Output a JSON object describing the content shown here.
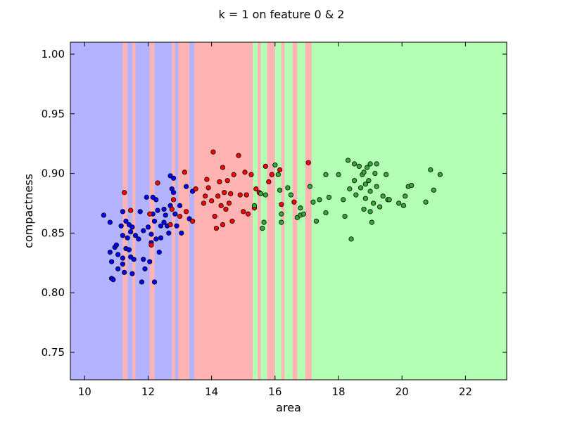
{
  "chart_data": {
    "type": "scatter",
    "title": "k = 1 on feature 0 & 2",
    "xlabel": "area",
    "ylabel": "compactness",
    "xlim": [
      9.55,
      23.3
    ],
    "ylim": [
      0.727,
      1.01
    ],
    "xticks": [
      10,
      12,
      14,
      16,
      18,
      20,
      22
    ],
    "yticks": [
      0.75,
      0.8,
      0.85,
      0.9,
      0.95,
      1.0
    ],
    "xtick_labels": [
      "10",
      "12",
      "14",
      "16",
      "18",
      "20",
      "22"
    ],
    "ytick_labels": [
      "0.75",
      "0.80",
      "0.85",
      "0.90",
      "0.95",
      "1.00"
    ],
    "grid": false,
    "region_colors": {
      "class_1": "#b3b3ff",
      "class_2": "#ffb3b3",
      "class_3": "#b3ffb3"
    },
    "point_colors": {
      "class_1": "#0000ff",
      "class_2": "#ff0000",
      "class_3": "#33aa33"
    },
    "decision_regions": [
      {
        "x0": 9.55,
        "x1": 11.2,
        "cls": "class_1"
      },
      {
        "x0": 11.2,
        "x1": 11.35,
        "cls": "class_2"
      },
      {
        "x0": 11.35,
        "x1": 11.5,
        "cls": "class_1"
      },
      {
        "x0": 11.5,
        "x1": 11.6,
        "cls": "class_2"
      },
      {
        "x0": 11.6,
        "x1": 12.05,
        "cls": "class_1"
      },
      {
        "x0": 12.05,
        "x1": 12.2,
        "cls": "class_2"
      },
      {
        "x0": 12.2,
        "x1": 12.75,
        "cls": "class_1"
      },
      {
        "x0": 12.75,
        "x1": 12.85,
        "cls": "class_2"
      },
      {
        "x0": 12.85,
        "x1": 12.95,
        "cls": "class_1"
      },
      {
        "x0": 12.95,
        "x1": 13.3,
        "cls": "class_2"
      },
      {
        "x0": 13.3,
        "x1": 13.45,
        "cls": "class_1"
      },
      {
        "x0": 13.45,
        "x1": 15.3,
        "cls": "class_2"
      },
      {
        "x0": 15.3,
        "x1": 15.45,
        "cls": "class_3"
      },
      {
        "x0": 15.45,
        "x1": 15.55,
        "cls": "class_2"
      },
      {
        "x0": 15.55,
        "x1": 15.75,
        "cls": "class_3"
      },
      {
        "x0": 15.75,
        "x1": 16.0,
        "cls": "class_2"
      },
      {
        "x0": 16.0,
        "x1": 16.2,
        "cls": "class_3"
      },
      {
        "x0": 16.2,
        "x1": 16.3,
        "cls": "class_2"
      },
      {
        "x0": 16.3,
        "x1": 16.55,
        "cls": "class_3"
      },
      {
        "x0": 16.55,
        "x1": 16.7,
        "cls": "class_2"
      },
      {
        "x0": 16.7,
        "x1": 16.95,
        "cls": "class_3"
      },
      {
        "x0": 16.95,
        "x1": 17.15,
        "cls": "class_2"
      },
      {
        "x0": 17.15,
        "x1": 23.3,
        "cls": "class_3"
      }
    ],
    "series": [
      {
        "name": "class_1",
        "points": [
          [
            10.6,
            0.865
          ],
          [
            10.8,
            0.859
          ],
          [
            10.8,
            0.834
          ],
          [
            10.85,
            0.826
          ],
          [
            10.85,
            0.812
          ],
          [
            10.9,
            0.811
          ],
          [
            10.95,
            0.838
          ],
          [
            11.0,
            0.84
          ],
          [
            11.05,
            0.832
          ],
          [
            11.05,
            0.82
          ],
          [
            11.15,
            0.856
          ],
          [
            11.2,
            0.868
          ],
          [
            11.2,
            0.848
          ],
          [
            11.2,
            0.829
          ],
          [
            11.2,
            0.824
          ],
          [
            11.25,
            0.817
          ],
          [
            11.3,
            0.86
          ],
          [
            11.3,
            0.837
          ],
          [
            11.35,
            0.846
          ],
          [
            11.4,
            0.857
          ],
          [
            11.4,
            0.836
          ],
          [
            11.45,
            0.851
          ],
          [
            11.45,
            0.83
          ],
          [
            11.5,
            0.855
          ],
          [
            11.5,
            0.816
          ],
          [
            11.55,
            0.828
          ],
          [
            11.6,
            0.848
          ],
          [
            11.7,
            0.845
          ],
          [
            11.75,
            0.868
          ],
          [
            11.8,
            0.809
          ],
          [
            11.85,
            0.852
          ],
          [
            11.85,
            0.828
          ],
          [
            11.9,
            0.82
          ],
          [
            11.95,
            0.88
          ],
          [
            12.0,
            0.855
          ],
          [
            12.05,
            0.826
          ],
          [
            12.1,
            0.849
          ],
          [
            12.1,
            0.842
          ],
          [
            12.15,
            0.88
          ],
          [
            12.15,
            0.866
          ],
          [
            12.2,
            0.809
          ],
          [
            12.2,
            0.86
          ],
          [
            12.25,
            0.878
          ],
          [
            12.25,
            0.845
          ],
          [
            12.3,
            0.869
          ],
          [
            12.35,
            0.834
          ],
          [
            12.4,
            0.856
          ],
          [
            12.4,
            0.846
          ],
          [
            12.5,
            0.87
          ],
          [
            12.5,
            0.859
          ],
          [
            12.55,
            0.865
          ],
          [
            12.6,
            0.856
          ],
          [
            12.65,
            0.85
          ],
          [
            12.7,
            0.898
          ],
          [
            12.7,
            0.873
          ],
          [
            12.75,
            0.887
          ],
          [
            12.8,
            0.896
          ],
          [
            12.8,
            0.884
          ],
          [
            12.85,
            0.866
          ],
          [
            12.9,
            0.856
          ],
          [
            13.0,
            0.873
          ],
          [
            13.05,
            0.85
          ],
          [
            13.2,
            0.889
          ],
          [
            13.3,
            0.862
          ],
          [
            13.4,
            0.885
          ]
        ]
      },
      {
        "name": "class_2",
        "points": [
          [
            11.25,
            0.884
          ],
          [
            11.45,
            0.869
          ],
          [
            12.05,
            0.866
          ],
          [
            12.1,
            0.84
          ],
          [
            12.3,
            0.892
          ],
          [
            12.7,
            0.857
          ],
          [
            12.75,
            0.87
          ],
          [
            12.8,
            0.878
          ],
          [
            13.0,
            0.864
          ],
          [
            13.15,
            0.901
          ],
          [
            13.2,
            0.868
          ],
          [
            13.4,
            0.86
          ],
          [
            13.5,
            0.887
          ],
          [
            13.75,
            0.875
          ],
          [
            13.8,
            0.881
          ],
          [
            13.85,
            0.895
          ],
          [
            13.9,
            0.888
          ],
          [
            14.0,
            0.877
          ],
          [
            14.05,
            0.918
          ],
          [
            14.1,
            0.864
          ],
          [
            14.15,
            0.854
          ],
          [
            14.2,
            0.881
          ],
          [
            14.25,
            0.893
          ],
          [
            14.3,
            0.873
          ],
          [
            14.35,
            0.905
          ],
          [
            14.35,
            0.857
          ],
          [
            14.4,
            0.884
          ],
          [
            14.45,
            0.87
          ],
          [
            14.5,
            0.894
          ],
          [
            14.55,
            0.875
          ],
          [
            14.6,
            0.883
          ],
          [
            14.65,
            0.86
          ],
          [
            14.7,
            0.899
          ],
          [
            14.85,
            0.915
          ],
          [
            14.9,
            0.882
          ],
          [
            15.0,
            0.868
          ],
          [
            15.05,
            0.901
          ],
          [
            15.1,
            0.882
          ],
          [
            15.15,
            0.866
          ],
          [
            15.25,
            0.899
          ],
          [
            15.35,
            0.871
          ],
          [
            15.4,
            0.887
          ],
          [
            15.5,
            0.884
          ],
          [
            15.7,
            0.906
          ],
          [
            15.8,
            0.893
          ],
          [
            15.9,
            0.899
          ],
          [
            16.15,
            0.903
          ],
          [
            16.2,
            0.874
          ],
          [
            16.6,
            0.876
          ],
          [
            17.05,
            0.909
          ]
        ]
      },
      {
        "name": "class_3",
        "points": [
          [
            15.35,
            0.873
          ],
          [
            15.55,
            0.883
          ],
          [
            15.6,
            0.854
          ],
          [
            15.65,
            0.859
          ],
          [
            15.7,
            0.882
          ],
          [
            16.0,
            0.907
          ],
          [
            16.1,
            0.899
          ],
          [
            16.15,
            0.886
          ],
          [
            16.2,
            0.866
          ],
          [
            16.2,
            0.859
          ],
          [
            16.4,
            0.888
          ],
          [
            16.5,
            0.882
          ],
          [
            16.7,
            0.863
          ],
          [
            16.8,
            0.871
          ],
          [
            16.8,
            0.865
          ],
          [
            16.9,
            0.866
          ],
          [
            17.1,
            0.889
          ],
          [
            17.2,
            0.876
          ],
          [
            17.3,
            0.86
          ],
          [
            17.4,
            0.878
          ],
          [
            17.6,
            0.899
          ],
          [
            17.6,
            0.867
          ],
          [
            17.7,
            0.88
          ],
          [
            18.0,
            0.899
          ],
          [
            18.15,
            0.878
          ],
          [
            18.2,
            0.864
          ],
          [
            18.3,
            0.911
          ],
          [
            18.35,
            0.887
          ],
          [
            18.4,
            0.845
          ],
          [
            18.5,
            0.908
          ],
          [
            18.5,
            0.894
          ],
          [
            18.55,
            0.882
          ],
          [
            18.65,
            0.906
          ],
          [
            18.7,
            0.888
          ],
          [
            18.75,
            0.899
          ],
          [
            18.8,
            0.901
          ],
          [
            18.8,
            0.87
          ],
          [
            18.85,
            0.891
          ],
          [
            18.85,
            0.879
          ],
          [
            18.9,
            0.905
          ],
          [
            18.95,
            0.894
          ],
          [
            19.0,
            0.908
          ],
          [
            19.0,
            0.885
          ],
          [
            19.0,
            0.868
          ],
          [
            19.05,
            0.859
          ],
          [
            19.1,
            0.875
          ],
          [
            19.15,
            0.9
          ],
          [
            19.2,
            0.908
          ],
          [
            19.2,
            0.889
          ],
          [
            19.3,
            0.872
          ],
          [
            19.4,
            0.881
          ],
          [
            19.5,
            0.899
          ],
          [
            19.55,
            0.878
          ],
          [
            19.6,
            0.878
          ],
          [
            19.9,
            0.875
          ],
          [
            20.05,
            0.873
          ],
          [
            20.1,
            0.881
          ],
          [
            20.2,
            0.889
          ],
          [
            20.3,
            0.89
          ],
          [
            20.75,
            0.876
          ],
          [
            20.9,
            0.903
          ],
          [
            21.0,
            0.886
          ],
          [
            21.2,
            0.899
          ]
        ]
      }
    ]
  }
}
